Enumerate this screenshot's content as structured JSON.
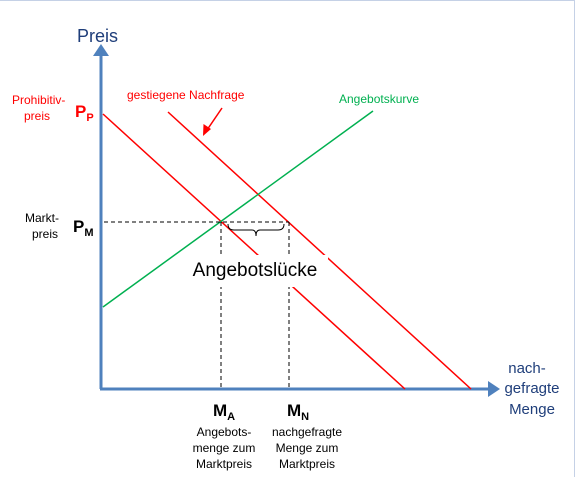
{
  "labels": {
    "y_axis": "Preis",
    "x_axis_line1": "nach-",
    "x_axis_line2": "gefragte",
    "x_axis_line3": "Menge",
    "prohibitiv_line1": "Prohibitiv-",
    "prohibitiv_line2": "preis",
    "pp_main": "P",
    "pp_sub": "P",
    "markt_line1": "Markt-",
    "markt_line2": "preis",
    "pm_main": "P",
    "pm_sub": "M",
    "ma_main": "M",
    "ma_sub": "A",
    "mn_main": "M",
    "mn_sub": "N",
    "ma_desc_line1": "Angebots-",
    "ma_desc_line2": "menge zum",
    "ma_desc_line3": "Marktpreis",
    "mn_desc_line1": "nachgefragte",
    "mn_desc_line2": "Menge zum",
    "mn_desc_line3": "Marktpreis",
    "gestiegene_nachfrage": "gestiegene Nachfrage",
    "angebotskurve": "Angebotskurve",
    "angebotsluecke": "Angebotslücke"
  },
  "colors": {
    "axis": "#4f81bd",
    "axis_title": "#1f3e7a",
    "demand": "#ff0000",
    "supply": "#00b050",
    "text": "#000000",
    "dashed": "#000000"
  },
  "chart_data": {
    "type": "line",
    "title": "",
    "xlabel": "nach-gefragte Menge",
    "ylabel": "Preis",
    "series": [
      {
        "name": "",
        "description": "demand curve",
        "color": "#ff0000",
        "points": [
          [
            0,
            100
          ],
          [
            100,
            0
          ]
        ]
      },
      {
        "name": "gestiegene Nachfrage",
        "color": "#ff0000",
        "points": [
          [
            23,
            100
          ],
          [
            123,
            0
          ]
        ]
      },
      {
        "name": "Angebotskurve",
        "color": "#00b050",
        "points": [
          [
            0,
            29
          ],
          [
            93,
            100
          ]
        ]
      }
    ],
    "reference_points": {
      "PP": 100,
      "PM": 58,
      "MA": 42,
      "MN": 65
    },
    "annotations": [
      "Angebotslücke",
      "gestiegene Nachfrage",
      "Angebotskurve",
      "Prohibitivpreis",
      "Marktpreis"
    ]
  }
}
